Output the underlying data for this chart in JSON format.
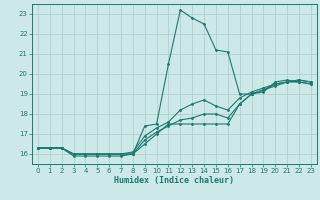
{
  "xlabel": "Humidex (Indice chaleur)",
  "bg_color": "#cce8e8",
  "grid_color": "#aacccc",
  "line_color": "#1a7a6e",
  "xlim": [
    -0.5,
    23.5
  ],
  "ylim": [
    15.5,
    23.5
  ],
  "yticks": [
    16,
    17,
    18,
    19,
    20,
    21,
    22,
    23
  ],
  "xticks": [
    0,
    1,
    2,
    3,
    4,
    5,
    6,
    7,
    8,
    9,
    10,
    11,
    12,
    13,
    14,
    15,
    16,
    17,
    18,
    19,
    20,
    21,
    22,
    23
  ],
  "series": [
    {
      "x": [
        0,
        1,
        2,
        3,
        4,
        5,
        6,
        7,
        8,
        9,
        10,
        11,
        12,
        13,
        14,
        15,
        16,
        17,
        18,
        19,
        20,
        21,
        22,
        23
      ],
      "y": [
        16.3,
        16.3,
        16.3,
        15.9,
        15.9,
        15.9,
        15.9,
        15.9,
        16.0,
        17.4,
        17.5,
        20.5,
        23.2,
        22.8,
        22.5,
        21.2,
        21.1,
        19.0,
        19.0,
        19.1,
        19.6,
        19.7,
        19.6,
        19.5
      ]
    },
    {
      "x": [
        0,
        1,
        2,
        3,
        4,
        5,
        6,
        7,
        8,
        9,
        10,
        11,
        12,
        13,
        14,
        15,
        16,
        17,
        18,
        19,
        20,
        21,
        22,
        23
      ],
      "y": [
        16.3,
        16.3,
        16.3,
        16.0,
        16.0,
        16.0,
        16.0,
        16.0,
        16.0,
        16.5,
        17.0,
        17.5,
        17.5,
        17.5,
        17.5,
        17.5,
        17.5,
        18.5,
        19.0,
        19.2,
        19.5,
        19.6,
        19.7,
        19.6
      ]
    },
    {
      "x": [
        0,
        1,
        2,
        3,
        4,
        5,
        6,
        7,
        8,
        9,
        10,
        11,
        12,
        13,
        14,
        15,
        16,
        17,
        18,
        19,
        20,
        21,
        22,
        23
      ],
      "y": [
        16.3,
        16.3,
        16.3,
        16.0,
        16.0,
        16.0,
        16.0,
        16.0,
        16.0,
        16.7,
        17.1,
        17.4,
        17.7,
        17.8,
        18.0,
        18.0,
        17.8,
        18.5,
        19.0,
        19.2,
        19.4,
        19.6,
        19.6,
        19.5
      ]
    },
    {
      "x": [
        0,
        1,
        2,
        3,
        4,
        5,
        6,
        7,
        8,
        9,
        10,
        11,
        12,
        13,
        14,
        15,
        16,
        17,
        18,
        19,
        20,
        21,
        22,
        23
      ],
      "y": [
        16.3,
        16.3,
        16.3,
        16.0,
        16.0,
        16.0,
        16.0,
        16.0,
        16.1,
        16.9,
        17.3,
        17.6,
        18.2,
        18.5,
        18.7,
        18.4,
        18.2,
        18.8,
        19.1,
        19.3,
        19.5,
        19.6,
        19.7,
        19.6
      ]
    }
  ]
}
